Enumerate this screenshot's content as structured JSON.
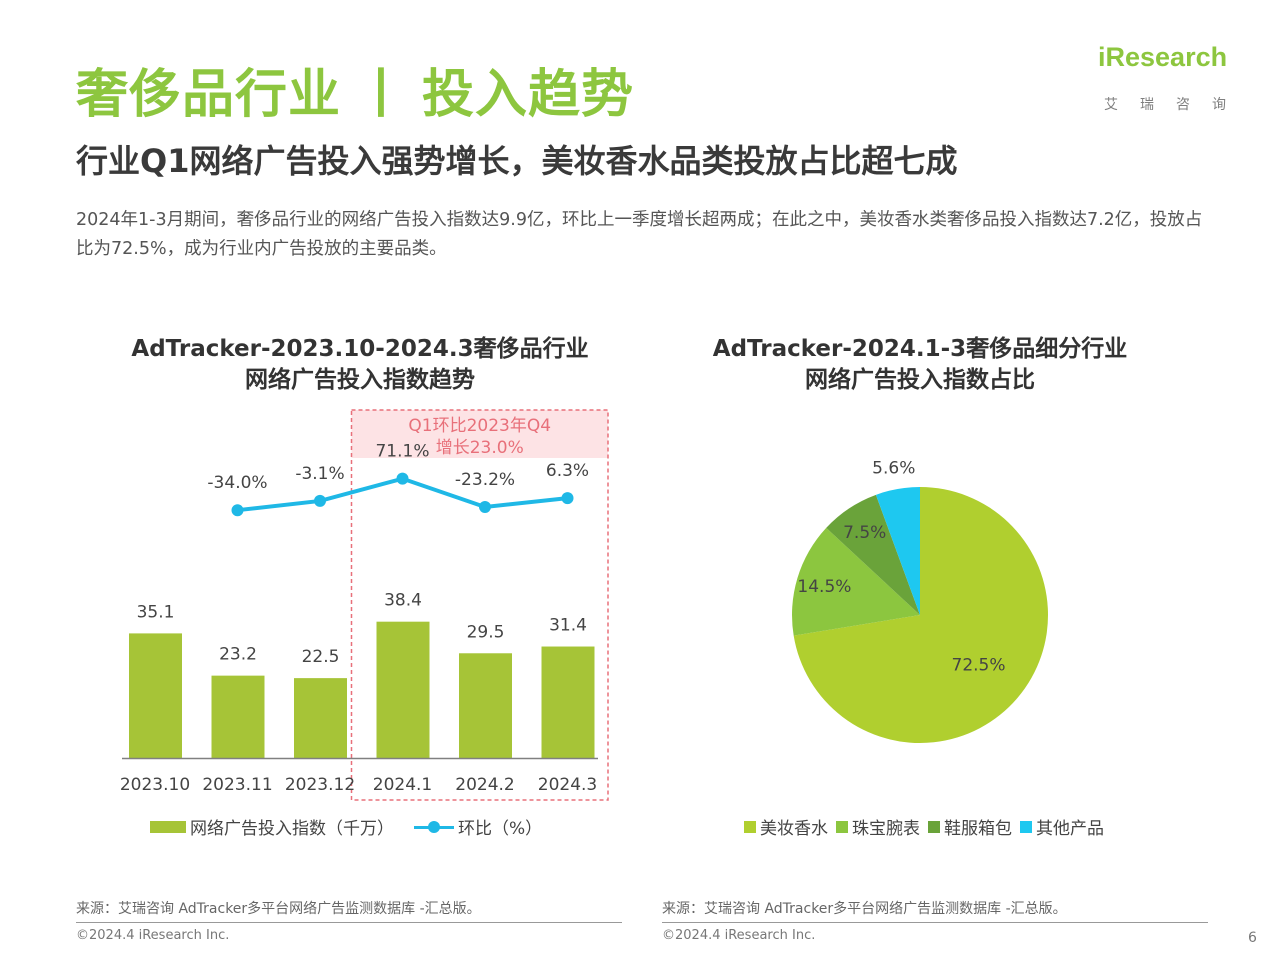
{
  "header": {
    "title_left": "奢侈品行业",
    "title_sep": "丨",
    "title_right": "投入趋势",
    "subtitle": "行业Q1网络广告投入强势增长，美妆香水品类投放占比超七成",
    "body": "2024年1-3月期间，奢侈品行业的网络广告投入指数达9.9亿，环比上一季度增长超两成；在此之中，美妆香水类奢侈品投入指数达7.2亿，投放占比为72.5%，成为行业内广告投放的主要品类。"
  },
  "logo": {
    "word": "iResearch",
    "cn": "艾瑞咨询"
  },
  "chart_data": [
    {
      "type": "bar",
      "title": [
        "AdTracker-2023.10-2024.3奢侈品行业",
        "网络广告投入指数趋势"
      ],
      "categories": [
        "2023.10",
        "2023.11",
        "2023.12",
        "2024.1",
        "2024.2",
        "2024.3"
      ],
      "series": [
        {
          "name": "网络广告投入指数（千万）",
          "type": "bar",
          "values": [
            35.1,
            23.2,
            22.5,
            38.4,
            29.5,
            31.4
          ],
          "labels": [
            "35.1",
            "23.2",
            "22.5",
            "38.4",
            "29.5",
            "31.4"
          ],
          "color": "#a6c437"
        },
        {
          "name": "环比（%）",
          "type": "line",
          "values": [
            null,
            -34.0,
            -3.1,
            71.1,
            -23.2,
            6.3
          ],
          "labels": [
            "",
            "-34.0%",
            "-3.1%",
            "71.1%",
            "-23.2%",
            "6.3%"
          ],
          "color": "#1fb8e6"
        }
      ],
      "annotation": {
        "lines": [
          "Q1环比2023年Q4",
          "增长23.0%"
        ],
        "color": "#e8707a",
        "fill": "#fde3e5",
        "spans": [
          "2024.1",
          "2024.3"
        ]
      },
      "legend": "bottom"
    },
    {
      "type": "pie",
      "title": [
        "AdTracker-2024.1-3奢侈品细分行业",
        "网络广告投入指数占比"
      ],
      "slices": [
        {
          "name": "美妆香水",
          "value": 72.5,
          "label": "72.5%",
          "color": "#b0cf2f"
        },
        {
          "name": "珠宝腕表",
          "value": 14.5,
          "label": "14.5%",
          "color": "#8cc63f"
        },
        {
          "name": "鞋服箱包",
          "value": 7.5,
          "label": "7.5%",
          "color": "#6aa33a"
        },
        {
          "name": "其他产品",
          "value": 5.6,
          "label": "5.6%",
          "color": "#1ec8f0"
        }
      ],
      "legend": "bottom"
    }
  ],
  "footer": {
    "source_left": "来源：艾瑞咨询 AdTracker多平台网络广告监测数据库 -汇总版。",
    "source_right": "来源：艾瑞咨询 AdTracker多平台网络广告监测数据库 -汇总版。",
    "copyright_left": "©2024.4 iResearch Inc.",
    "copyright_right": "©2024.4 iResearch Inc.",
    "page": "6"
  }
}
